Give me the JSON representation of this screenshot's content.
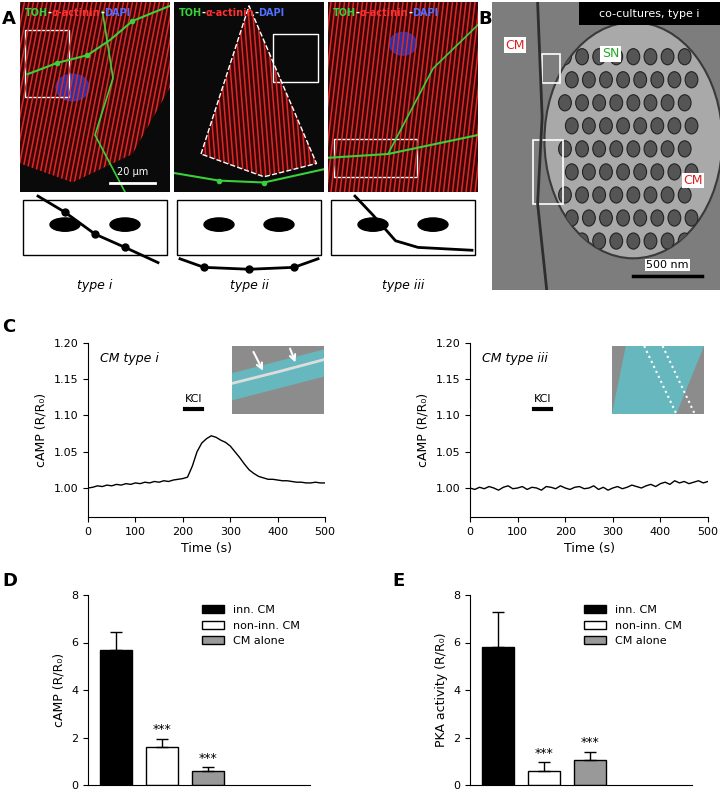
{
  "panel_labels": [
    "A",
    "B",
    "C",
    "D",
    "E"
  ],
  "panel_A": {
    "stain_label": [
      {
        "text": "TOH",
        "color": "#39d039"
      },
      {
        "text": "-",
        "color": "#ffffff"
      },
      {
        "text": "α-actinin",
        "color": "#ff3030"
      },
      {
        "text": "-",
        "color": "#ffffff"
      },
      {
        "text": "DAPI",
        "color": "#5070ff"
      }
    ],
    "scale_bar": "20 µm",
    "types": [
      "type i",
      "type ii",
      "type iii"
    ]
  },
  "panel_B": {
    "header": "co-cultures, type i",
    "labels": [
      {
        "text": "CM",
        "color": "#e02020"
      },
      {
        "text": "SN",
        "color": "#22aa22"
      },
      {
        "text": "CM",
        "color": "#e02020"
      }
    ],
    "scale_bar": "500 nm"
  },
  "chart_data": [
    {
      "type": "line",
      "title": "CM type i",
      "x_label": "Time (s)",
      "y_label": "cAMP (R/R₀)",
      "color": "#000000",
      "x": [
        0,
        10,
        20,
        30,
        40,
        50,
        60,
        70,
        80,
        90,
        100,
        110,
        120,
        130,
        140,
        150,
        160,
        170,
        180,
        190,
        200,
        210,
        220,
        230,
        240,
        250,
        260,
        270,
        280,
        290,
        300,
        310,
        320,
        330,
        340,
        350,
        360,
        370,
        380,
        390,
        400,
        410,
        420,
        430,
        440,
        450,
        460,
        470,
        480,
        490,
        500
      ],
      "values": [
        1.0,
        1.001,
        1.003,
        1.002,
        1.004,
        1.003,
        1.005,
        1.004,
        1.006,
        1.005,
        1.007,
        1.006,
        1.008,
        1.007,
        1.009,
        1.008,
        1.01,
        1.009,
        1.011,
        1.012,
        1.013,
        1.015,
        1.03,
        1.05,
        1.062,
        1.068,
        1.072,
        1.07,
        1.066,
        1.063,
        1.058,
        1.05,
        1.042,
        1.033,
        1.025,
        1.02,
        1.016,
        1.014,
        1.012,
        1.012,
        1.011,
        1.01,
        1.01,
        1.009,
        1.008,
        1.008,
        1.007,
        1.007,
        1.008,
        1.007,
        1.007
      ],
      "xlim": [
        0,
        500
      ],
      "xticks": [
        0,
        100,
        200,
        300,
        400,
        500
      ],
      "ylim": [
        0.96,
        1.2
      ],
      "yticks": [
        {
          "value": 1.0,
          "label": "1.00"
        },
        {
          "value": 1.05,
          "label": "1.05"
        },
        {
          "value": 1.1,
          "label": "1.10"
        },
        {
          "value": 1.15,
          "label": "1.15"
        },
        {
          "value": 1.2,
          "label": "1.20"
        }
      ],
      "annotations": [
        {
          "text": "KCl",
          "x": [
            205,
            240
          ]
        }
      ]
    },
    {
      "type": "line",
      "title": "CM type iii",
      "x_label": "Time (s)",
      "y_label": "cAMP (R/R₀)",
      "color": "#000000",
      "x": [
        0,
        10,
        20,
        30,
        40,
        50,
        60,
        70,
        80,
        90,
        100,
        110,
        120,
        130,
        140,
        150,
        160,
        170,
        180,
        190,
        200,
        210,
        220,
        230,
        240,
        250,
        260,
        270,
        280,
        290,
        300,
        310,
        320,
        330,
        340,
        350,
        360,
        370,
        380,
        390,
        400,
        410,
        420,
        430,
        440,
        450,
        460,
        470,
        480,
        490,
        500
      ],
      "values": [
        1.0,
        0.998,
        1.001,
        0.999,
        1.002,
        1.0,
        0.997,
        1.001,
        1.003,
        0.999,
        1.0,
        1.002,
        0.998,
        1.001,
        1.0,
        0.997,
        1.002,
        1.001,
        0.999,
        1.003,
        1.0,
        0.998,
        1.001,
        1.002,
        0.999,
        1.0,
        1.003,
        0.998,
        1.001,
        0.997,
        1.0,
        1.002,
        0.999,
        1.001,
        1.004,
        1.002,
        1.0,
        1.003,
        1.005,
        1.002,
        1.006,
        1.008,
        1.005,
        1.01,
        1.007,
        1.009,
        1.006,
        1.008,
        1.01,
        1.007,
        1.009
      ],
      "xlim": [
        0,
        500
      ],
      "xticks": [
        0,
        100,
        200,
        300,
        400,
        500
      ],
      "ylim": [
        0.96,
        1.2
      ],
      "yticks": [
        {
          "value": 1.0,
          "label": "1.00"
        },
        {
          "value": 1.05,
          "label": "1.05"
        },
        {
          "value": 1.1,
          "label": "1.10"
        },
        {
          "value": 1.15,
          "label": "1.15"
        },
        {
          "value": 1.2,
          "label": "1.20"
        }
      ],
      "annotations": [
        {
          "text": "KCl",
          "x": [
            135,
            170
          ]
        }
      ]
    },
    {
      "type": "bar",
      "y_label": "cAMP (R/R₀)",
      "categories": [
        "inn. CM",
        "non-inn. CM",
        "CM alone"
      ],
      "values": [
        5.7,
        1.6,
        0.6
      ],
      "errors": [
        0.75,
        0.35,
        0.15
      ],
      "colors": [
        "#000000",
        "#ffffff",
        "#999999"
      ],
      "ylim": [
        0,
        8
      ],
      "yticks": [
        0,
        2,
        4,
        6,
        8
      ],
      "legend": "upper right",
      "tick_labels": "y",
      "annotations": [
        {
          "text": "***",
          "index": 1
        },
        {
          "text": "***",
          "index": 2
        }
      ]
    },
    {
      "type": "bar",
      "y_label": "PKA activity (R/R₀)",
      "categories": [
        "inn. CM",
        "non-inn. CM",
        "CM alone"
      ],
      "values": [
        5.8,
        0.6,
        1.05
      ],
      "errors": [
        1.5,
        0.35,
        0.35
      ],
      "colors": [
        "#000000",
        "#ffffff",
        "#999999"
      ],
      "ylim": [
        0,
        8
      ],
      "yticks": [
        0,
        2,
        4,
        6,
        8
      ],
      "legend": "upper right",
      "tick_labels": "y",
      "annotations": [
        {
          "text": "***",
          "index": 1
        },
        {
          "text": "***",
          "index": 2
        }
      ]
    }
  ]
}
